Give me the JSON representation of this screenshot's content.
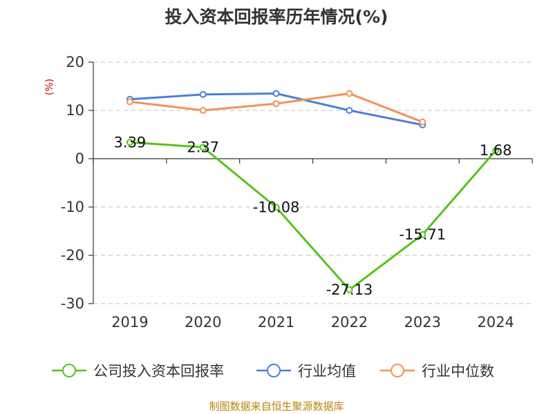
{
  "chart_data": {
    "type": "line",
    "title": "投入资本回报率历年情况(%)",
    "ylabel": "(%)",
    "categories": [
      "2019",
      "2020",
      "2021",
      "2022",
      "2023",
      "2024"
    ],
    "ylim": [
      -30,
      20
    ],
    "yticks": [
      20,
      10,
      0,
      -10,
      -20,
      -30
    ],
    "grid": true,
    "legend_position": "bottom",
    "series": [
      {
        "name": "公司投入资本回报率",
        "color": "#52c41a",
        "values": [
          3.39,
          2.37,
          -10.08,
          -27.13,
          -15.71,
          1.68
        ],
        "labels": [
          "3.39",
          "2.37",
          "-10.08",
          "-27.13",
          "-15.71",
          "1.68"
        ]
      },
      {
        "name": "行业均值",
        "color": "#4a7fdc",
        "values": [
          12.3,
          13.3,
          13.5,
          10.0,
          7.0,
          null
        ]
      },
      {
        "name": "行业中位数",
        "color": "#f5905a",
        "values": [
          11.8,
          10.0,
          11.4,
          13.5,
          7.6,
          null
        ]
      }
    ]
  },
  "source": "制图数据来自恒生聚源数据库"
}
